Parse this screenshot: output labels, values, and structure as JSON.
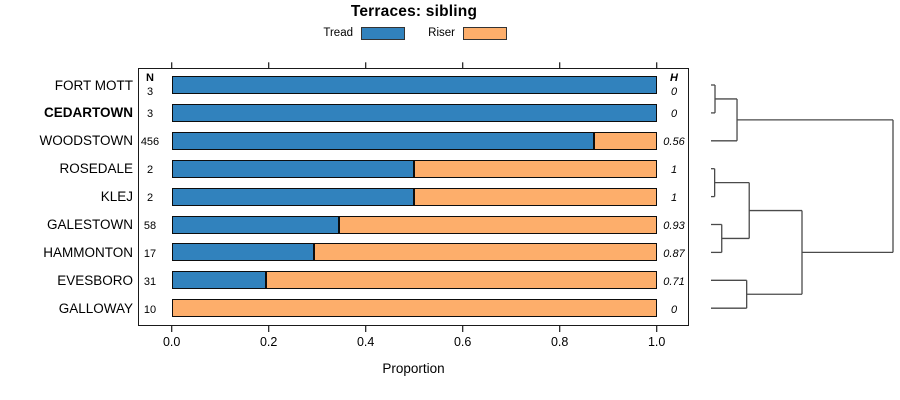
{
  "title": "Terraces: sibling",
  "legend": {
    "items": [
      {
        "label": "Tread",
        "color": "#3182BD"
      },
      {
        "label": "Riser",
        "color": "#FDAE6B"
      }
    ]
  },
  "columns": {
    "n_header": "N",
    "h_header": "H"
  },
  "chart_data": {
    "type": "bar",
    "stacked": true,
    "orientation": "horizontal",
    "title": "Terraces: sibling",
    "xlabel": "Proportion",
    "xlim": [
      0,
      1
    ],
    "x_ticks": [
      "0.0",
      "0.2",
      "0.4",
      "0.6",
      "0.8",
      "1.0"
    ],
    "x_tick_values": [
      0.0,
      0.2,
      0.4,
      0.6,
      0.8,
      1.0
    ],
    "legend_position": "top",
    "categories": [
      "FORT MOTT",
      "CEDARTOWN",
      "WOODSTOWN",
      "ROSEDALE",
      "KLEJ",
      "GALESTOWN",
      "HAMMONTON",
      "EVESBORO",
      "GALLOWAY"
    ],
    "emphasized_category": "CEDARTOWN",
    "series": [
      {
        "name": "Tread",
        "color": "#3182BD",
        "values": [
          1,
          1,
          0.87,
          0.5,
          0.5,
          0.345,
          0.294,
          0.194,
          0
        ]
      },
      {
        "name": "Riser",
        "color": "#FDAE6B",
        "values": [
          0,
          0,
          0.13,
          0.5,
          0.5,
          0.655,
          0.706,
          0.806,
          1
        ]
      }
    ],
    "n_values": [
      "3",
      "3",
      "456",
      "2",
      "2",
      "58",
      "17",
      "31",
      "10"
    ],
    "h_values": [
      "0",
      "0",
      "0.56",
      "1",
      "1",
      "0.93",
      "0.87",
      "0.71",
      "0"
    ]
  },
  "dendrogram": {
    "line_color": "#4a4a4a",
    "tree": {
      "height": 1.0,
      "children": [
        {
          "height": 0.143,
          "children": [
            {
              "height": 0.022,
              "children": [
                {
                  "leaf": "FORT MOTT"
                },
                {
                  "leaf": "CEDARTOWN"
                }
              ]
            },
            {
              "leaf": "WOODSTOWN"
            }
          ]
        },
        {
          "height": 0.5,
          "children": [
            {
              "height": 0.21,
              "children": [
                {
                  "height": 0.02,
                  "children": [
                    {
                      "leaf": "ROSEDALE"
                    },
                    {
                      "leaf": "KLEJ"
                    }
                  ]
                },
                {
                  "height": 0.059,
                  "children": [
                    {
                      "leaf": "GALESTOWN"
                    },
                    {
                      "leaf": "HAMMONTON"
                    }
                  ]
                }
              ]
            },
            {
              "height": 0.196,
              "children": [
                {
                  "leaf": "EVESBORO"
                },
                {
                  "leaf": "GALLOWAY"
                }
              ]
            }
          ]
        }
      ]
    }
  }
}
